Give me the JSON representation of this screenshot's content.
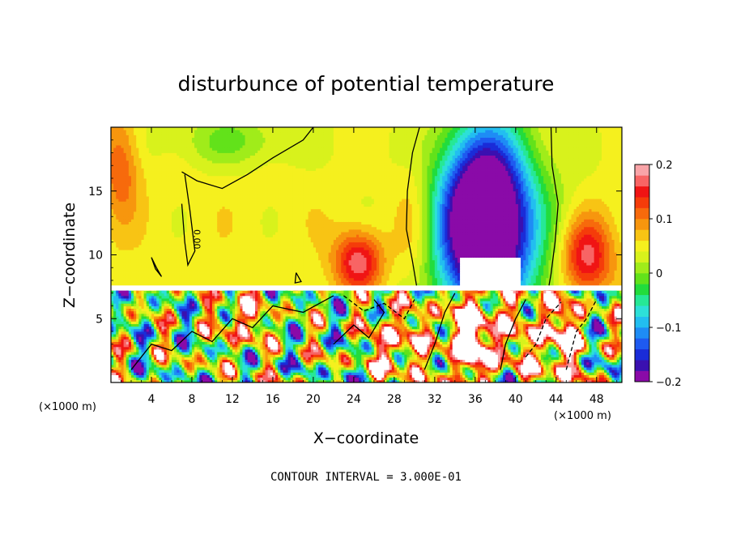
{
  "chart_data": {
    "type": "heatmap",
    "title": "disturbunce of potential temperature",
    "xlabel": "X−coordinate",
    "ylabel": "Z−coordinate",
    "x_unit": "(×1000 m)",
    "x_unit_right": "(×1000 m)",
    "xlim": [
      0,
      50.5
    ],
    "ylim": [
      0,
      20
    ],
    "x_ticks": [
      4,
      8,
      12,
      16,
      20,
      24,
      28,
      32,
      36,
      40,
      44,
      48
    ],
    "y_ticks": [
      5,
      10,
      15
    ],
    "colorbar": {
      "range": [
        -0.2,
        0.2
      ],
      "ticks": [
        {
          "value": 0.2,
          "label": "0.2"
        },
        {
          "value": 0.1,
          "label": "0.1"
        },
        {
          "value": 0.0,
          "label": "0"
        },
        {
          "value": -0.1,
          "label": "−0.1"
        },
        {
          "value": -0.2,
          "label": "−0.2"
        }
      ],
      "colors": [
        "#8a0aa8",
        "#3a10b0",
        "#1a2cd8",
        "#1e5af0",
        "#1e8cf5",
        "#22bef0",
        "#2de0d8",
        "#26e896",
        "#22dc3c",
        "#62e21a",
        "#a0ec1a",
        "#d8f21c",
        "#f5f01e",
        "#f8c414",
        "#f7960e",
        "#f76a0c",
        "#f53c0a",
        "#f01414",
        "#f86464",
        "#f9a4a8"
      ]
    },
    "contour_label": "0.00",
    "footer": "CONTOUR INTERVAL = 3.000E-01"
  }
}
